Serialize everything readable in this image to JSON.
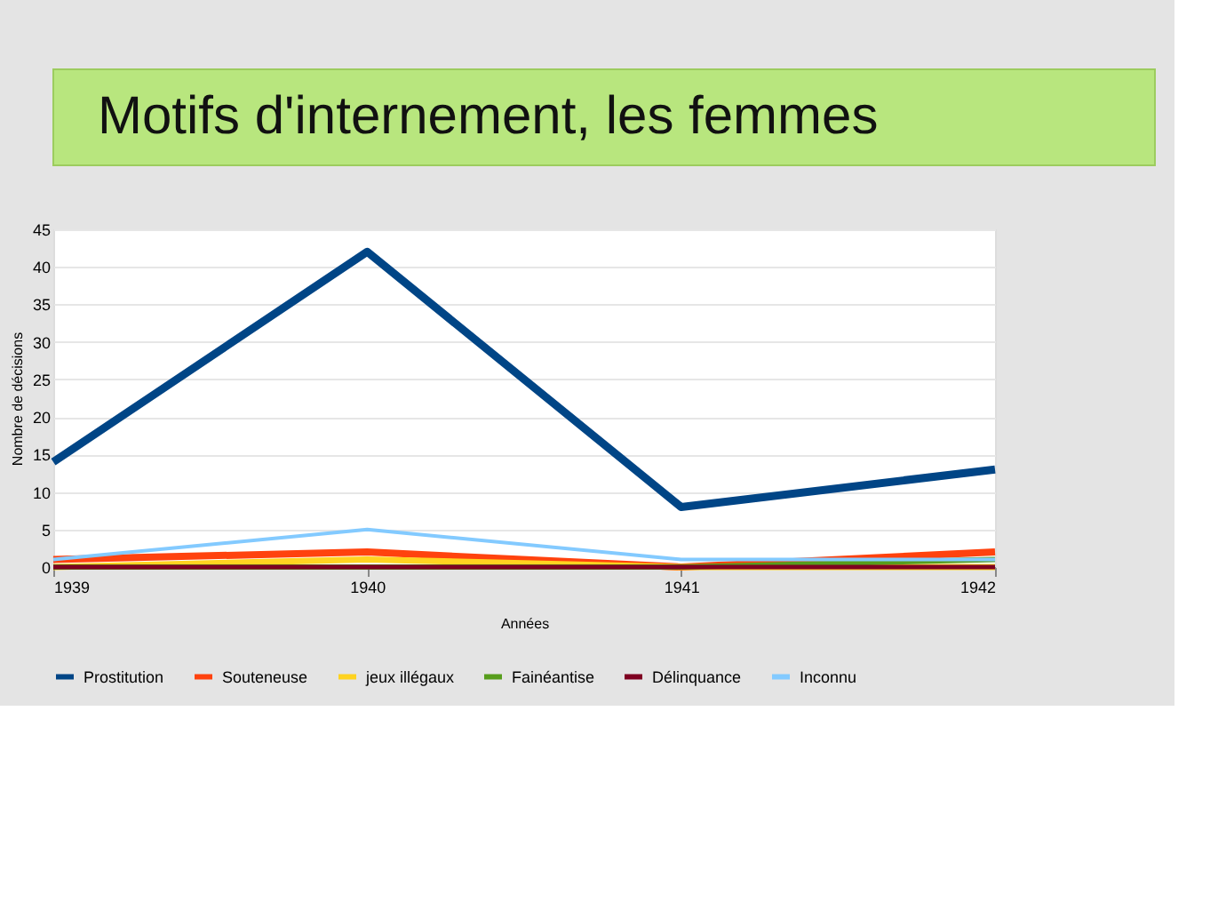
{
  "chart_data": {
    "type": "line",
    "title": "Motifs d'internement, les femmes",
    "xlabel": "Années",
    "ylabel": "Nombre de décisions",
    "x": [
      1939,
      1940,
      1941,
      1942
    ],
    "xlim": [
      1939,
      1942
    ],
    "xticks": [
      1939,
      1940,
      1941,
      1942
    ],
    "ylim": [
      0,
      45
    ],
    "yticks": [
      0,
      5,
      10,
      15,
      20,
      25,
      30,
      35,
      40,
      45
    ],
    "grid": "y",
    "legend": "bottom",
    "marker": "none",
    "line_style": "solid",
    "series": [
      {
        "name": "Prostitution",
        "color": "#004586",
        "values": [
          14,
          42,
          8,
          13
        ]
      },
      {
        "name": "Souteneuse",
        "color": "#ff420e",
        "values": [
          1,
          2,
          0,
          2
        ]
      },
      {
        "name": "jeux illégaux",
        "color": "#ffd320",
        "values": [
          0,
          1,
          0,
          0
        ]
      },
      {
        "name": "Fainéantise",
        "color": "#579d1c",
        "values": [
          0,
          0,
          0,
          1
        ]
      },
      {
        "name": "Délinquance",
        "color": "#7e0021",
        "values": [
          0,
          0,
          0,
          0
        ]
      },
      {
        "name": "Inconnu",
        "color": "#83caff",
        "values": [
          1,
          5,
          1,
          1
        ]
      }
    ]
  }
}
